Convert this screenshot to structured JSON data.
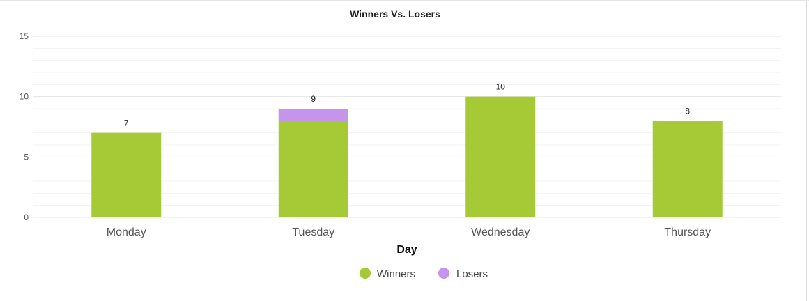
{
  "chart_data": {
    "type": "bar",
    "stacked": true,
    "title": "Winners Vs. Losers",
    "xlabel": "Day",
    "ylabel": "",
    "ylim": [
      0,
      15
    ],
    "yticks": [
      0,
      5,
      10,
      15
    ],
    "y_minor_step": 1,
    "grid": true,
    "legend_position": "bottom",
    "categories": [
      "Monday",
      "Tuesday",
      "Wednesday",
      "Thursday"
    ],
    "series": [
      {
        "name": "Winners",
        "values": [
          7,
          8,
          10,
          8
        ],
        "color": "#a6c936"
      },
      {
        "name": "Losers",
        "values": [
          0,
          1,
          0,
          0
        ],
        "color": "#c495ea"
      }
    ],
    "totals": [
      7,
      9,
      10,
      8
    ]
  }
}
